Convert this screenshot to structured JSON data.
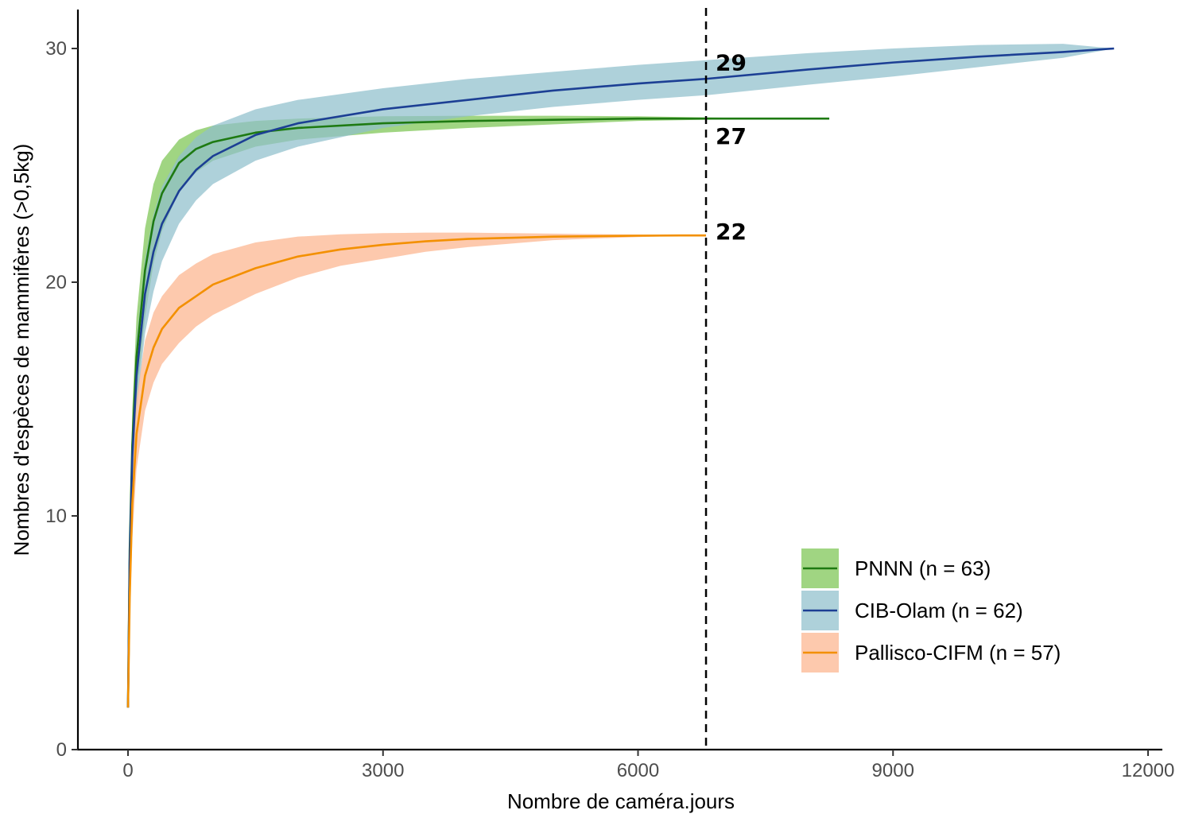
{
  "chart_data": {
    "type": "line",
    "title": "",
    "xlabel": "Nombre de caméra.jours",
    "ylabel": "Nombres d'espèces de mammifères (>0,5kg)",
    "xlim": [
      -200,
      12000
    ],
    "ylim": [
      0,
      31.6
    ],
    "x_ticks": [
      0,
      3000,
      6000,
      9000,
      12000
    ],
    "y_ticks": [
      0,
      10,
      20,
      30
    ],
    "grid": false,
    "legend_position": "bottom-right",
    "vline": {
      "x": 6800,
      "style": "dashed",
      "color": "#000000"
    },
    "series": [
      {
        "name": "PNNN (n = 63)",
        "line_color": "#1e7a12",
        "band_color": "#7cc552",
        "x": [
          0,
          20,
          50,
          100,
          200,
          300,
          400,
          600,
          800,
          1000,
          1500,
          2000,
          3000,
          4000,
          5000,
          6000,
          6800,
          7500,
          8250
        ],
        "y": [
          1.8,
          8.5,
          13.0,
          16.8,
          20.5,
          22.6,
          23.8,
          25.1,
          25.7,
          26.0,
          26.4,
          26.6,
          26.8,
          26.9,
          26.95,
          27.0,
          27.0,
          27.0,
          27.0
        ],
        "lower": [
          1.8,
          7.5,
          11.5,
          15.0,
          18.5,
          20.8,
          22.2,
          23.9,
          24.7,
          25.2,
          25.8,
          26.1,
          26.4,
          26.6,
          26.75,
          26.9,
          26.95,
          27.0,
          27.0
        ],
        "upper": [
          1.8,
          9.5,
          14.5,
          18.5,
          22.3,
          24.2,
          25.2,
          26.1,
          26.5,
          26.7,
          26.9,
          27.0,
          27.1,
          27.12,
          27.12,
          27.1,
          27.05,
          27.02,
          27.0
        ]
      },
      {
        "name": "CIB-Olam (n = 62)",
        "line_color": "#1c3f94",
        "band_color": "#8fbfcc",
        "x": [
          0,
          20,
          50,
          100,
          200,
          300,
          400,
          600,
          800,
          1000,
          1500,
          2000,
          3000,
          4000,
          5000,
          6000,
          6800,
          8000,
          9000,
          10000,
          11000,
          11600
        ],
        "y": [
          1.8,
          8.0,
          12.5,
          16.0,
          19.5,
          21.3,
          22.5,
          23.9,
          24.8,
          25.4,
          26.3,
          26.8,
          27.4,
          27.8,
          28.2,
          28.5,
          28.7,
          29.1,
          29.4,
          29.65,
          29.85,
          30.0
        ],
        "lower": [
          1.8,
          7.0,
          11.0,
          14.5,
          17.8,
          19.6,
          20.9,
          22.5,
          23.5,
          24.2,
          25.2,
          25.8,
          26.6,
          27.1,
          27.5,
          27.8,
          28.0,
          28.45,
          28.8,
          29.2,
          29.6,
          30.0
        ],
        "upper": [
          1.8,
          9.0,
          14.0,
          17.5,
          21.0,
          22.9,
          24.1,
          25.4,
          26.2,
          26.7,
          27.4,
          27.8,
          28.3,
          28.7,
          29.0,
          29.3,
          29.5,
          29.8,
          30.0,
          30.15,
          30.2,
          30.0
        ]
      },
      {
        "name": "Pallisco-CIFM (n = 57)",
        "line_color": "#f39000",
        "band_color": "#fcb48d",
        "x": [
          0,
          20,
          50,
          100,
          200,
          300,
          400,
          600,
          800,
          1000,
          1500,
          2000,
          2500,
          3000,
          3500,
          4000,
          4500,
          5000,
          5500,
          6000,
          6500,
          6800
        ],
        "y": [
          1.8,
          6.5,
          10.5,
          13.5,
          16.0,
          17.2,
          18.0,
          18.9,
          19.4,
          19.9,
          20.6,
          21.1,
          21.4,
          21.6,
          21.75,
          21.85,
          21.9,
          21.95,
          21.97,
          21.99,
          22.0,
          22.0
        ],
        "lower": [
          1.8,
          5.5,
          9.0,
          12.0,
          14.5,
          15.7,
          16.5,
          17.4,
          18.1,
          18.6,
          19.5,
          20.2,
          20.7,
          21.0,
          21.3,
          21.5,
          21.65,
          21.8,
          21.87,
          21.93,
          21.98,
          22.0
        ],
        "upper": [
          1.8,
          7.5,
          12.0,
          15.0,
          17.5,
          18.7,
          19.4,
          20.3,
          20.8,
          21.2,
          21.7,
          21.95,
          22.05,
          22.1,
          22.12,
          22.12,
          22.1,
          22.08,
          22.06,
          22.04,
          22.01,
          22.0
        ]
      }
    ],
    "annotations": [
      {
        "text": "29",
        "x": 6800,
        "y": 29
      },
      {
        "text": "27",
        "x": 6800,
        "y": 27
      },
      {
        "text": "22",
        "x": 6800,
        "y": 22
      }
    ]
  }
}
